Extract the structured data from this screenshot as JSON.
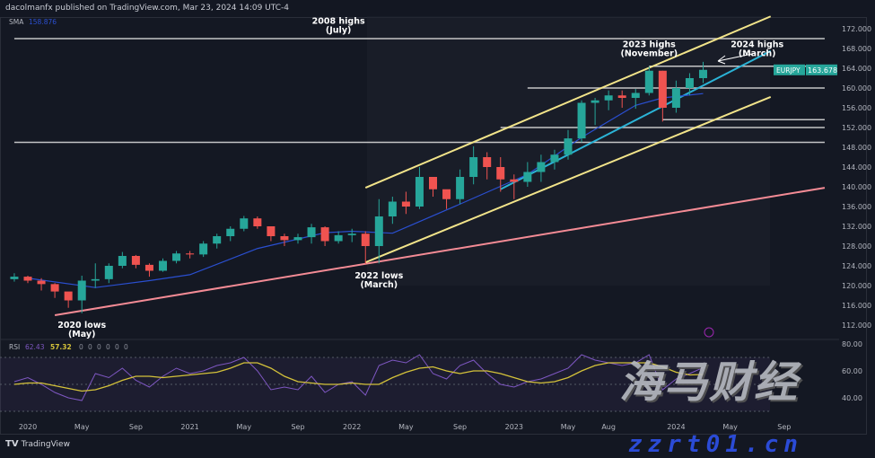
{
  "header": {
    "published": "dacolmanfx published on TradingView.com, Mar 23, 2024 14:09 UTC-4"
  },
  "footer": {
    "brand": "TradingView",
    "logo_icon": "tradingview-logo-icon"
  },
  "watermark": {
    "cn": "海马财经",
    "url": "zzrt01.cn"
  },
  "colors": {
    "up": "#26a69a",
    "down": "#ef5350",
    "sma": "#2a4fd0",
    "channel": "#f2e48a",
    "support": "#f48b95",
    "trend": "#2bb3d6",
    "rsi": "#7e57c2",
    "rsi_ma": "#d4c23a",
    "level": "#d8d8d8",
    "badge": "#26a69a"
  },
  "chart_data": [
    {
      "type": "candlestick",
      "symbol": "EURJPY",
      "last_price": "163.678",
      "indicator": {
        "label": "SMA",
        "value": "158.876"
      },
      "ylim": [
        110,
        174.5
      ],
      "y_ticks": [
        "172.000",
        "168.000",
        "164.000",
        "160.000",
        "156.000",
        "152.000",
        "148.000",
        "144.000",
        "140.000",
        "136.000",
        "132.000",
        "128.000",
        "124.000",
        "120.000",
        "116.000",
        "112.000"
      ],
      "x_ticks": [
        {
          "label": "2020",
          "date": "2020-01"
        },
        {
          "label": "May",
          "date": "2020-05"
        },
        {
          "label": "Sep",
          "date": "2020-09"
        },
        {
          "label": "2021",
          "date": "2021-01"
        },
        {
          "label": "May",
          "date": "2021-05"
        },
        {
          "label": "Sep",
          "date": "2021-09"
        },
        {
          "label": "2022",
          "date": "2022-01"
        },
        {
          "label": "May",
          "date": "2022-05"
        },
        {
          "label": "Sep",
          "date": "2022-09"
        },
        {
          "label": "2023",
          "date": "2023-01"
        },
        {
          "label": "May",
          "date": "2023-05"
        },
        {
          "label": "Aug",
          "date": "2023-08"
        },
        {
          "label": "2024",
          "date": "2024-01"
        },
        {
          "label": "May",
          "date": "2024-05"
        },
        {
          "label": "Sep",
          "date": "2024-09"
        }
      ],
      "dates": [
        "2019-12",
        "2020-01",
        "2020-02",
        "2020-03",
        "2020-04",
        "2020-05",
        "2020-06",
        "2020-07",
        "2020-08",
        "2020-09",
        "2020-10",
        "2020-11",
        "2020-12",
        "2021-01",
        "2021-02",
        "2021-03",
        "2021-04",
        "2021-05",
        "2021-06",
        "2021-07",
        "2021-08",
        "2021-09",
        "2021-10",
        "2021-11",
        "2021-12",
        "2022-01",
        "2022-02",
        "2022-03",
        "2022-04",
        "2022-05",
        "2022-06",
        "2022-07",
        "2022-08",
        "2022-09",
        "2022-10",
        "2022-11",
        "2022-12",
        "2023-01",
        "2023-02",
        "2023-03",
        "2023-04",
        "2023-05",
        "2023-06",
        "2023-07",
        "2023-08",
        "2023-09",
        "2023-10",
        "2023-11",
        "2023-12",
        "2024-01",
        "2024-02",
        "2024-03"
      ],
      "close": [
        121.8,
        121.0,
        120.3,
        118.8,
        117.0,
        121.0,
        121.3,
        124.0,
        126.0,
        124.2,
        123.0,
        125.0,
        126.5,
        126.3,
        128.5,
        130.0,
        131.5,
        133.6,
        132.0,
        130.0,
        129.2,
        129.8,
        131.8,
        129.0,
        130.2,
        130.5,
        128.0,
        134.0,
        137.0,
        136.0,
        142.0,
        139.5,
        137.5,
        142.0,
        146.0,
        144.0,
        141.5,
        141.0,
        143.0,
        145.0,
        146.5,
        149.8,
        157.0,
        157.5,
        158.5,
        158.0,
        159.0,
        163.5,
        156.0,
        160.0,
        162.0,
        163.678
      ],
      "high": [
        122.5,
        122.0,
        121.5,
        120.5,
        118.5,
        122.0,
        124.5,
        124.5,
        126.8,
        126.2,
        124.5,
        125.5,
        127.0,
        127.0,
        129.0,
        130.5,
        132.0,
        134.1,
        134.0,
        132.0,
        130.5,
        130.5,
        132.5,
        132.0,
        131.0,
        131.5,
        131.0,
        137.5,
        138.0,
        139.0,
        144.0,
        142.0,
        139.0,
        143.5,
        148.2,
        147.0,
        146.0,
        142.5,
        145.0,
        146.5,
        147.5,
        151.5,
        157.5,
        158.0,
        159.5,
        159.5,
        159.8,
        164.3,
        163.5,
        161.5,
        163.0,
        165.3
      ],
      "low": [
        120.8,
        120.5,
        119.0,
        117.5,
        115.5,
        114.4,
        119.5,
        120.5,
        123.5,
        123.5,
        121.8,
        122.8,
        124.5,
        125.5,
        125.8,
        127.5,
        129.0,
        131.0,
        131.5,
        129.0,
        128.0,
        128.5,
        128.5,
        128.0,
        128.5,
        128.8,
        124.4,
        124.5,
        132.5,
        134.5,
        135.5,
        138.0,
        135.5,
        136.5,
        140.5,
        141.5,
        139.0,
        137.5,
        140.0,
        141.0,
        143.5,
        145.5,
        149.0,
        152.5,
        155.5,
        156.0,
        155.8,
        158.5,
        153.2,
        155.0,
        158.5,
        161.0
      ],
      "sma": [
        {
          "date": "2020-01",
          "value": 121.5
        },
        {
          "date": "2020-06",
          "value": 119.6
        },
        {
          "date": "2020-10",
          "value": 121.0
        },
        {
          "date": "2021-01",
          "value": 122.2
        },
        {
          "date": "2021-06",
          "value": 127.5
        },
        {
          "date": "2021-11",
          "value": 130.7
        },
        {
          "date": "2022-01",
          "value": 131.0
        },
        {
          "date": "2022-04",
          "value": 130.6
        },
        {
          "date": "2022-09",
          "value": 136.5
        },
        {
          "date": "2023-02",
          "value": 142.5
        },
        {
          "date": "2023-06",
          "value": 150.0
        },
        {
          "date": "2023-10",
          "value": 156.5
        },
        {
          "date": "2023-12",
          "value": 158.0
        },
        {
          "date": "2024-03",
          "value": 158.876
        }
      ],
      "lines": [
        {
          "kind": "horizontal",
          "price": 170.0,
          "from": "2019-12",
          "to": "2024-12",
          "color": "level"
        },
        {
          "kind": "horizontal",
          "price": 164.4,
          "from": "2023-11",
          "to": "2024-12",
          "color": "level"
        },
        {
          "kind": "horizontal",
          "price": 160.0,
          "from": "2023-02",
          "to": "2024-12",
          "color": "level"
        },
        {
          "kind": "horizontal",
          "price": 153.6,
          "from": "2023-12",
          "to": "2024-12",
          "color": "level"
        },
        {
          "kind": "horizontal",
          "price": 152.0,
          "from": "2022-12",
          "to": "2024-12",
          "color": "level"
        },
        {
          "kind": "horizontal",
          "price": 149.0,
          "from": "2019-12",
          "to": "2024-12",
          "color": "level"
        },
        {
          "kind": "trend",
          "from": {
            "date": "2020-03",
            "price": 114.0
          },
          "to": {
            "date": "2024-12",
            "price": 139.8
          },
          "color": "support"
        },
        {
          "kind": "trend",
          "from": {
            "date": "2022-02",
            "price": 139.8
          },
          "to": {
            "date": "2024-08",
            "price": 174.5
          },
          "color": "channel"
        },
        {
          "kind": "trend",
          "from": {
            "date": "2022-02",
            "price": 124.7
          },
          "to": {
            "date": "2024-08",
            "price": 158.2
          },
          "color": "channel"
        },
        {
          "kind": "trend",
          "from": {
            "date": "2022-12",
            "price": 139.5
          },
          "to": {
            "date": "2024-08",
            "price": 167.5
          },
          "color": "trend"
        }
      ],
      "annotations": [
        {
          "text": [
            "2008 highs",
            "(July)"
          ],
          "date": "2021-12",
          "price": 173.0
        },
        {
          "text": [
            "2023 highs",
            "(November)"
          ],
          "date": "2023-11",
          "price": 168.3
        },
        {
          "text": [
            "2024 highs",
            "(March)"
          ],
          "date": "2024-07",
          "price": 168.3
        },
        {
          "text": [
            "2022 lows",
            "(March)"
          ],
          "date": "2022-03",
          "price": 121.5
        },
        {
          "text": [
            "2020 lows",
            "(May)"
          ],
          "date": "2020-05",
          "price": 111.5
        }
      ]
    },
    {
      "type": "line",
      "indicator": {
        "label": "RSI",
        "rsi": "62.43",
        "ma": "57.32",
        "extra": [
          "0",
          "0",
          "0",
          "0",
          "0",
          "0"
        ]
      },
      "ylim": [
        20,
        85
      ],
      "y_ticks": [
        "80.00",
        "60.00",
        "40.00"
      ],
      "bands": [
        70,
        50,
        30
      ],
      "rsi": [
        52,
        55,
        50,
        44,
        40,
        38,
        58,
        55,
        62,
        53,
        48,
        56,
        62,
        58,
        60,
        64,
        66,
        70,
        60,
        46,
        48,
        46,
        56,
        44,
        50,
        52,
        42,
        64,
        68,
        66,
        72,
        58,
        54,
        64,
        68,
        58,
        50,
        48,
        52,
        54,
        58,
        62,
        72,
        68,
        66,
        64,
        66,
        72,
        46,
        54,
        58,
        62.43
      ],
      "rsi_ma": [
        50,
        51,
        51,
        49,
        47,
        45,
        46,
        49,
        53,
        56,
        56,
        55,
        56,
        57,
        58,
        59,
        62,
        66,
        66,
        62,
        56,
        52,
        51,
        50,
        50,
        51,
        50,
        50,
        55,
        59,
        62,
        63,
        60,
        58,
        60,
        60,
        58,
        55,
        52,
        51,
        52,
        55,
        60,
        64,
        66,
        66,
        66,
        66,
        63,
        59,
        57,
        57.32
      ]
    }
  ]
}
